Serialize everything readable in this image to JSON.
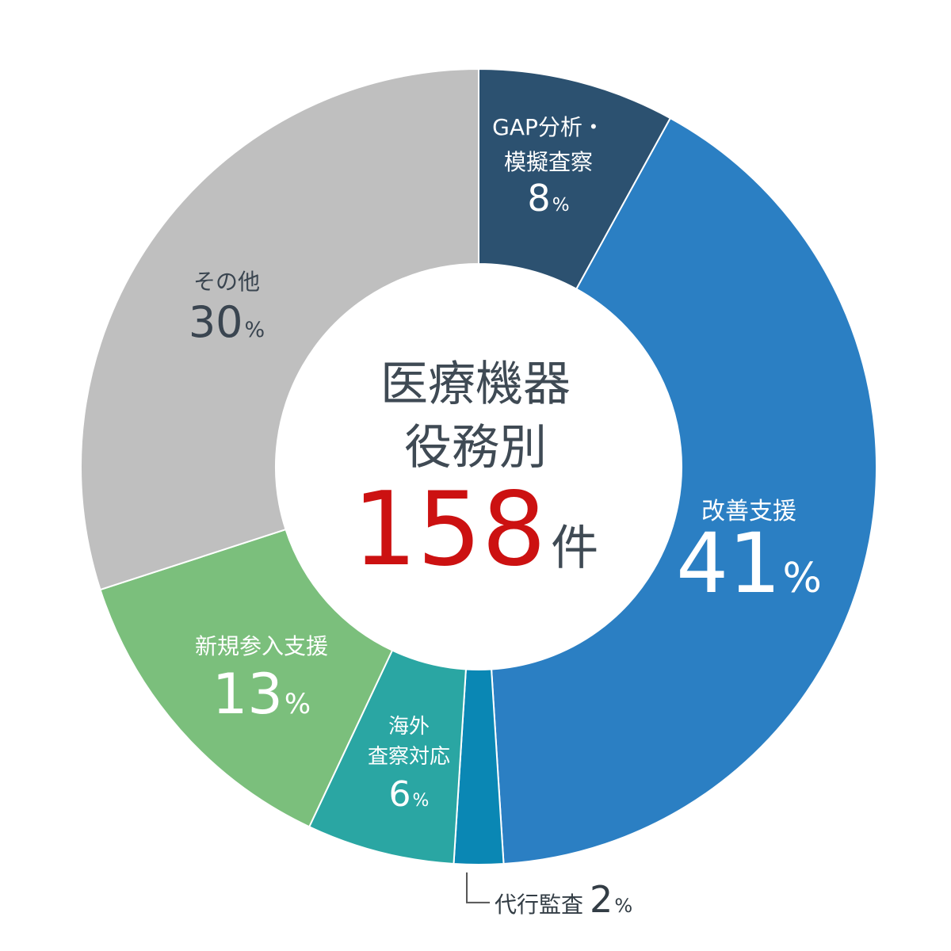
{
  "chart_data": {
    "type": "pie",
    "donut": true,
    "center": {
      "title_line1": "医療機器",
      "title_line2": "役務別",
      "total_value": "158",
      "total_unit": "件"
    },
    "start_angle_deg": 0,
    "direction": "clockwise",
    "slices": [
      {
        "name_lines": [
          "GAP分析・",
          "模擬査察"
        ],
        "value": 8,
        "label": "8",
        "unit": "%",
        "color": "#2c5170",
        "text_color": "#ffffff"
      },
      {
        "name_lines": [
          "改善支援"
        ],
        "value": 41,
        "label": "41",
        "unit": "%",
        "color": "#2b7fc3",
        "text_color": "#ffffff"
      },
      {
        "name_lines": [
          "代行監査"
        ],
        "value": 2,
        "label": "2",
        "unit": "%",
        "color": "#0a87b4",
        "text_color": "#333d45",
        "outside": true
      },
      {
        "name_lines": [
          "海外",
          "査察対応"
        ],
        "value": 6,
        "label": "6",
        "unit": "%",
        "color": "#2aa6a3",
        "text_color": "#ffffff"
      },
      {
        "name_lines": [
          "新規参入支援"
        ],
        "value": 13,
        "label": "13",
        "unit": "%",
        "color": "#7bbf7c",
        "text_color": "#ffffff"
      },
      {
        "name_lines": [
          "その他"
        ],
        "value": 30,
        "label": "30",
        "unit": "%",
        "color": "#bfbfbf",
        "text_color": "#3a4550"
      }
    ]
  }
}
